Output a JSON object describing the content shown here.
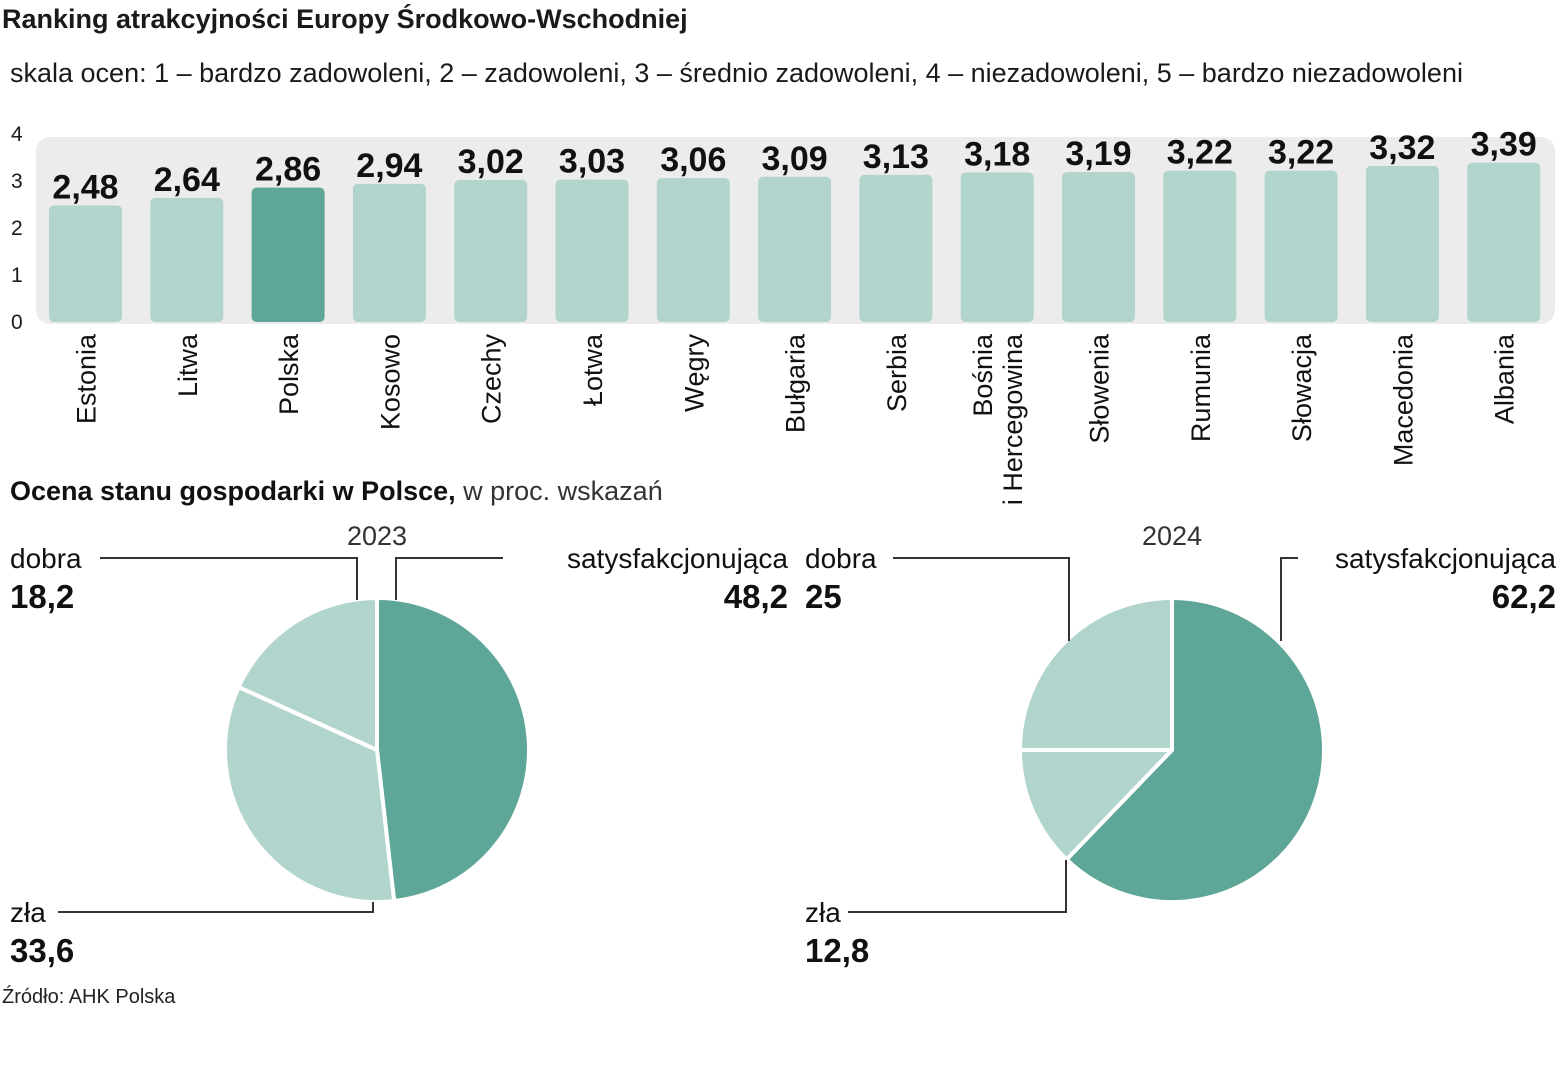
{
  "colors": {
    "bar": "#b1d4cd",
    "bar_highlight": "#5ea698",
    "panel": "#ececec",
    "pie_light": "#b1d4cd",
    "pie_dark": "#5ea698",
    "leader": "#333333"
  },
  "header": {
    "title": "Ranking atrakcyjności Europy Środkowo-Wschodniej",
    "subtitle": "skala ocen:  1 – bardzo zadowoleni, 2 – zadowoleni, 3 – średnio zadowoleni, 4 – niezadowoleni, 5 – bardzo niezadowoleni"
  },
  "section2": {
    "title": "Ocena stanu gospodarki w Polsce,",
    "subtitle": " w proc. wskazań"
  },
  "source": "Źródło: AHK Polska",
  "chart_data": [
    {
      "type": "bar",
      "categories": [
        "Estonia",
        "Litwa",
        "Polska",
        "Kosowo",
        "Czechy",
        "Łotwa",
        "Węgry",
        "Bułgaria",
        "Serbia",
        "Bośnia i Hercegowina",
        "Słowenia",
        "Rumunia",
        "Słowacja",
        "Macedonia",
        "Albania"
      ],
      "category_lines": [
        [
          "Estonia"
        ],
        [
          "Litwa"
        ],
        [
          "Polska"
        ],
        [
          "Kosowo"
        ],
        [
          "Czechy"
        ],
        [
          "Łotwa"
        ],
        [
          "Węgry"
        ],
        [
          "Bułgaria"
        ],
        [
          "Serbia"
        ],
        [
          "Bośnia",
          "i Hercegowina"
        ],
        [
          "Słowenia"
        ],
        [
          "Rumunia"
        ],
        [
          "Słowacja"
        ],
        [
          "Macedonia"
        ],
        [
          "Albania"
        ]
      ],
      "values": [
        2.48,
        2.64,
        2.86,
        2.94,
        3.02,
        3.03,
        3.06,
        3.09,
        3.13,
        3.18,
        3.19,
        3.22,
        3.22,
        3.32,
        3.39
      ],
      "value_labels": [
        "2,48",
        "2,64",
        "2,86",
        "2,94",
        "3,02",
        "3,03",
        "3,06",
        "3,09",
        "3,13",
        "3,18",
        "3,19",
        "3,22",
        "3,22",
        "3,32",
        "3,39"
      ],
      "highlight": "Polska",
      "yticks": [
        "0",
        "1",
        "2",
        "3",
        "4"
      ],
      "ylim": [
        0,
        4
      ],
      "grid": false
    },
    {
      "type": "pie",
      "title": "2023",
      "slices": [
        {
          "label": "satysfakcjonująca",
          "value": 48.2,
          "value_label": "48,2",
          "color": "dark"
        },
        {
          "label": "zła",
          "value": 33.6,
          "value_label": "33,6",
          "color": "light"
        },
        {
          "label": "dobra",
          "value": 18.2,
          "value_label": "18,2",
          "color": "light"
        }
      ]
    },
    {
      "type": "pie",
      "title": "2024",
      "slices": [
        {
          "label": "satysfakcjonująca",
          "value": 62.2,
          "value_label": "62,2",
          "color": "dark"
        },
        {
          "label": "zła",
          "value": 12.8,
          "value_label": "12,8",
          "color": "light"
        },
        {
          "label": "dobra",
          "value": 25,
          "value_label": "25",
          "color": "light"
        }
      ]
    }
  ]
}
